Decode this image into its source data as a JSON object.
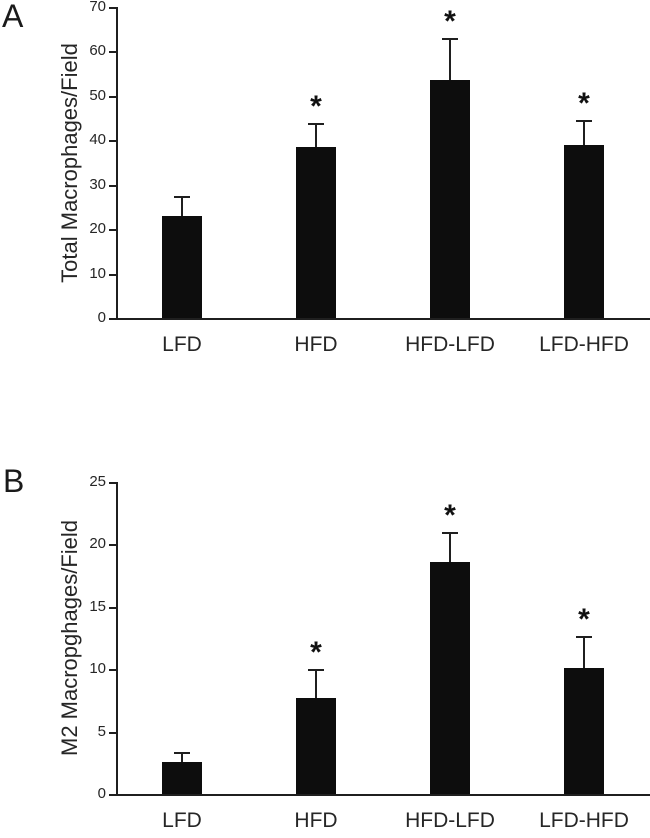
{
  "colors": {
    "background": "#ffffff",
    "bar": "#0d0d0d",
    "axis": "#1f1f1f",
    "text": "#262626"
  },
  "chart_data": [
    {
      "type": "bar",
      "panel_label": "A",
      "title": "",
      "xlabel": "",
      "ylabel": "Total Macrophages/Field",
      "ylim": [
        0,
        70
      ],
      "yticks": [
        0,
        10,
        20,
        30,
        40,
        50,
        60,
        70
      ],
      "grid": false,
      "legend": false,
      "categories": [
        "LFD",
        "HFD",
        "HFD-LFD",
        "LFD-HFD"
      ],
      "values": [
        23,
        38.5,
        53.5,
        39
      ],
      "error_up": [
        4.5,
        5.5,
        9.5,
        5.5
      ],
      "significant": [
        false,
        true,
        true,
        true
      ],
      "significance_marker": "*"
    },
    {
      "type": "bar",
      "panel_label": "B",
      "title": "",
      "xlabel": "",
      "ylabel": "M2 Macropghages/Field",
      "ylim": [
        0,
        25
      ],
      "yticks": [
        0,
        5,
        10,
        15,
        20,
        25
      ],
      "grid": false,
      "legend": false,
      "categories": [
        "LFD",
        "HFD",
        "HFD-LFD",
        "LFD-HFD"
      ],
      "values": [
        2.6,
        7.7,
        18.6,
        10.1
      ],
      "error_up": [
        0.8,
        2.3,
        2.4,
        2.6
      ],
      "significant": [
        false,
        true,
        true,
        true
      ],
      "significance_marker": "*"
    }
  ]
}
